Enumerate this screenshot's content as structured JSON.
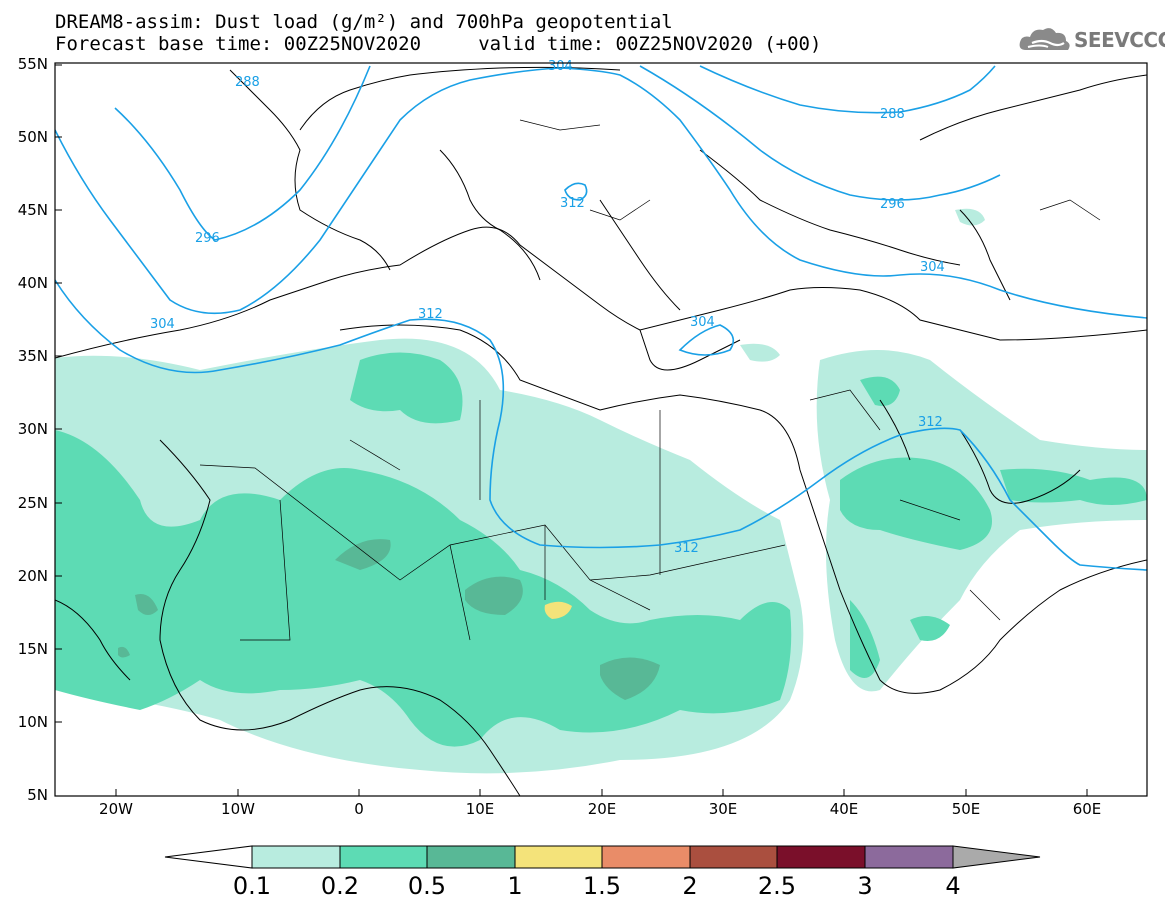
{
  "header": {
    "title_line1": "DREAM8-assim: Dust load (g/m²) and 700hPa geopotential",
    "title_line2": "Forecast base time: 00Z25NOV2020     valid time: 00Z25NOV2020 (+00)",
    "logo_text": "SEEVCCC",
    "logo_icon": "cloud-icon"
  },
  "map": {
    "lat_labels": [
      "55N",
      "50N",
      "45N",
      "40N",
      "35N",
      "30N",
      "25N",
      "20N",
      "15N",
      "10N",
      "5N"
    ],
    "lon_labels": [
      "20W",
      "10W",
      "0",
      "10E",
      "20E",
      "30E",
      "40E",
      "50E",
      "60E"
    ],
    "contour_labels": [
      {
        "text": "288"
      },
      {
        "text": "288"
      },
      {
        "text": "296"
      },
      {
        "text": "296"
      },
      {
        "text": "304"
      },
      {
        "text": "304"
      },
      {
        "text": "304"
      },
      {
        "text": "304"
      },
      {
        "text": "312"
      },
      {
        "text": "312"
      },
      {
        "text": "312"
      },
      {
        "text": "312"
      }
    ]
  },
  "colorbar": {
    "labels": [
      "0.1",
      "0.2",
      "0.5",
      "1",
      "1.5",
      "2",
      "2.5",
      "3",
      "4"
    ],
    "colors": [
      "#b8ecdf",
      "#5ddbb4",
      "#58b896",
      "#f4e37a",
      "#e98c68",
      "#aa4f3f",
      "#7a0f2a",
      "#8c6a9c"
    ],
    "under_color": "#ffffff",
    "over_color": "#aaaaaa"
  },
  "colors": {
    "contour": "#1aa0e6",
    "coast": "#000000"
  }
}
